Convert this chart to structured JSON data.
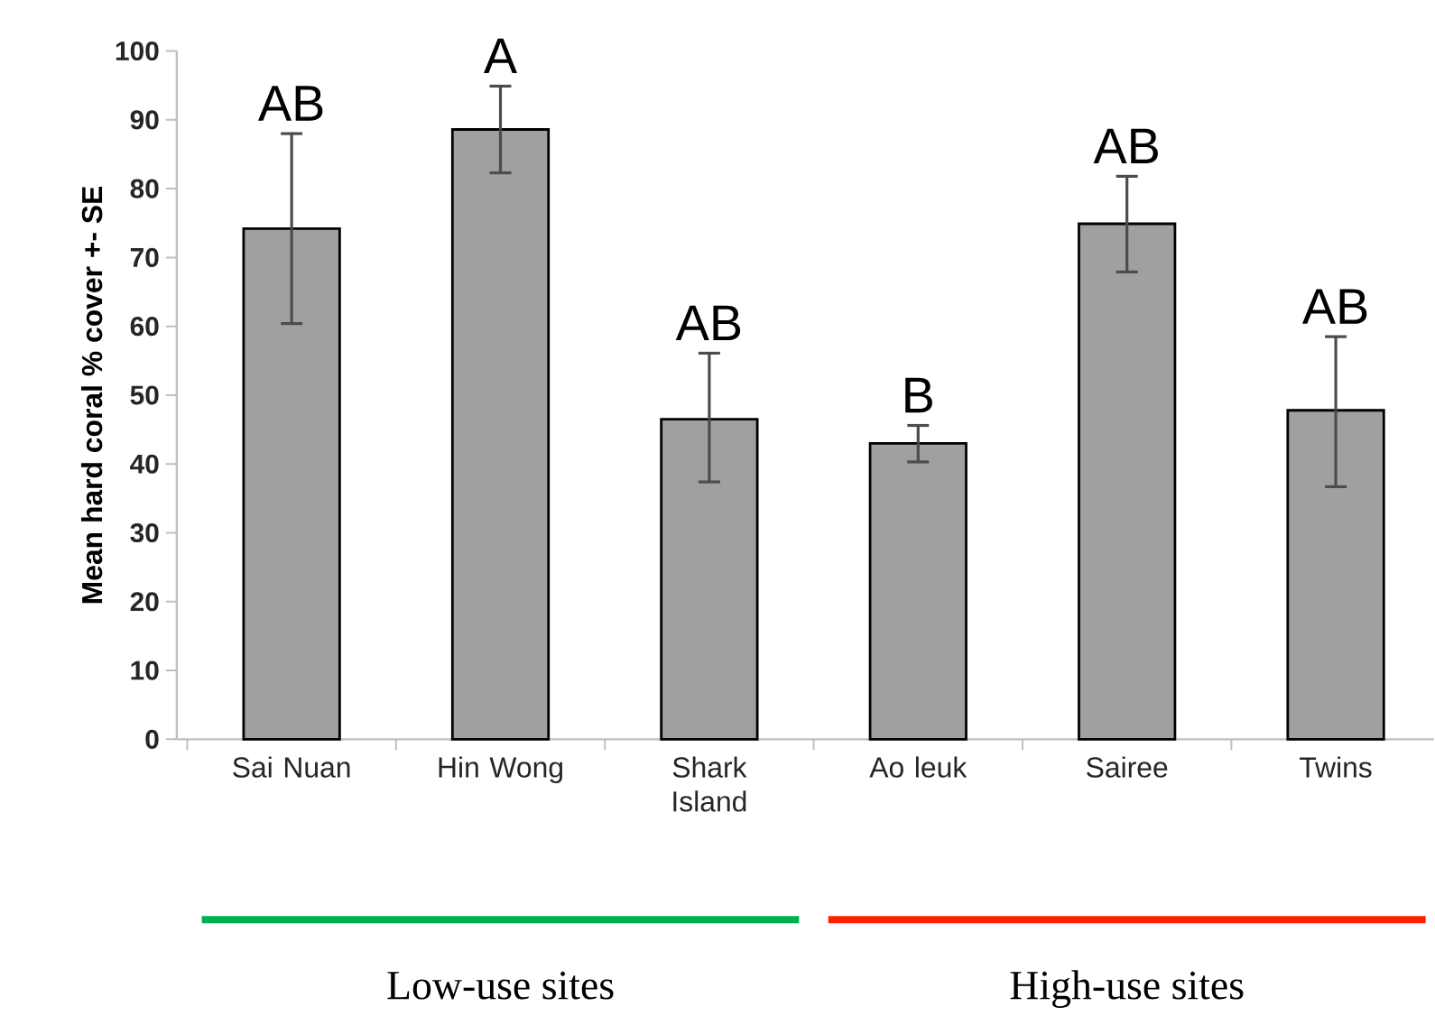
{
  "chart_data": {
    "type": "bar",
    "ylabel": "Mean hard coral % cover +- SE",
    "categories": [
      "Sai Nuan",
      "Hin Wong",
      "Shark Island",
      "Ao leuk",
      "Sairee",
      "Twins"
    ],
    "values": [
      74.2,
      88.6,
      46.5,
      43.0,
      74.9,
      47.8
    ],
    "errors": [
      [
        60.4,
        88.0
      ],
      [
        82.3,
        94.9
      ],
      [
        37.4,
        56.1
      ],
      [
        40.3,
        45.6
      ],
      [
        67.9,
        81.8
      ],
      [
        36.7,
        58.5
      ]
    ],
    "color": "#a0a0a0",
    "ylim": [
      0,
      100
    ],
    "yticks": [
      0,
      10,
      20,
      30,
      40,
      50,
      60,
      70,
      80,
      90,
      100
    ],
    "grid": false,
    "annotations": [
      {
        "text": "AB",
        "x": "Sai Nuan",
        "y": 88.0
      },
      {
        "text": "A",
        "x": "Hin Wong",
        "y": 94.9
      },
      {
        "text": "AB",
        "x": "Shark Island",
        "y": 56.1
      },
      {
        "text": "B",
        "x": "Ao leuk",
        "y": 45.6
      },
      {
        "text": "AB",
        "x": "Sairee",
        "y": 81.8
      },
      {
        "text": "AB",
        "x": "Twins",
        "y": 58.5
      },
      "Low-use sites",
      "High-use sites"
    ]
  }
}
